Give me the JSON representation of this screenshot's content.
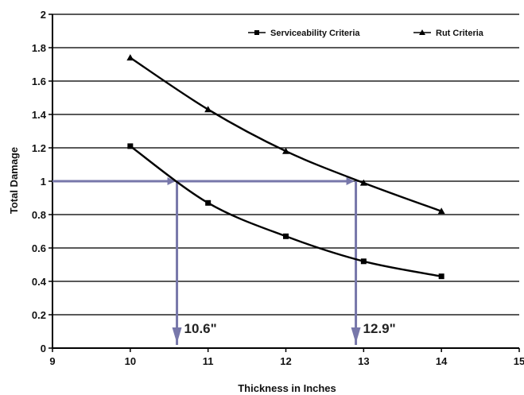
{
  "chart_data": {
    "type": "line",
    "title": "",
    "xlabel": "Thickness in Inches",
    "ylabel": "Total Damage",
    "xlim": [
      9,
      15
    ],
    "ylim": [
      0,
      2
    ],
    "x_ticks": [
      "9",
      "10",
      "11",
      "12",
      "13",
      "14",
      "15"
    ],
    "y_ticks": [
      "0",
      "0.2",
      "0.4",
      "0.6",
      "0.8",
      "1",
      "1.2",
      "1.4",
      "1.6",
      "1.8",
      "2"
    ],
    "grid": "horizontal",
    "legend_position": "top-right",
    "series": [
      {
        "name": "Serviceability Criteria",
        "marker": "square",
        "x": [
          10,
          11,
          12,
          13,
          14
        ],
        "y": [
          1.21,
          0.87,
          0.67,
          0.52,
          0.43
        ]
      },
      {
        "name": "Rut Criteria",
        "marker": "triangle",
        "x": [
          10,
          11,
          12,
          13,
          14
        ],
        "y": [
          1.74,
          1.43,
          1.18,
          0.99,
          0.82
        ]
      }
    ],
    "annotations": [
      {
        "label": "10.6\"",
        "x": 10.6,
        "y": 1.0
      },
      {
        "label": "12.9\"",
        "x": 12.9,
        "y": 1.0
      }
    ],
    "reference_line_y": 1.0,
    "colors": {
      "curve": "#000000",
      "reference": "#7777aa",
      "grid": "#222222"
    }
  }
}
